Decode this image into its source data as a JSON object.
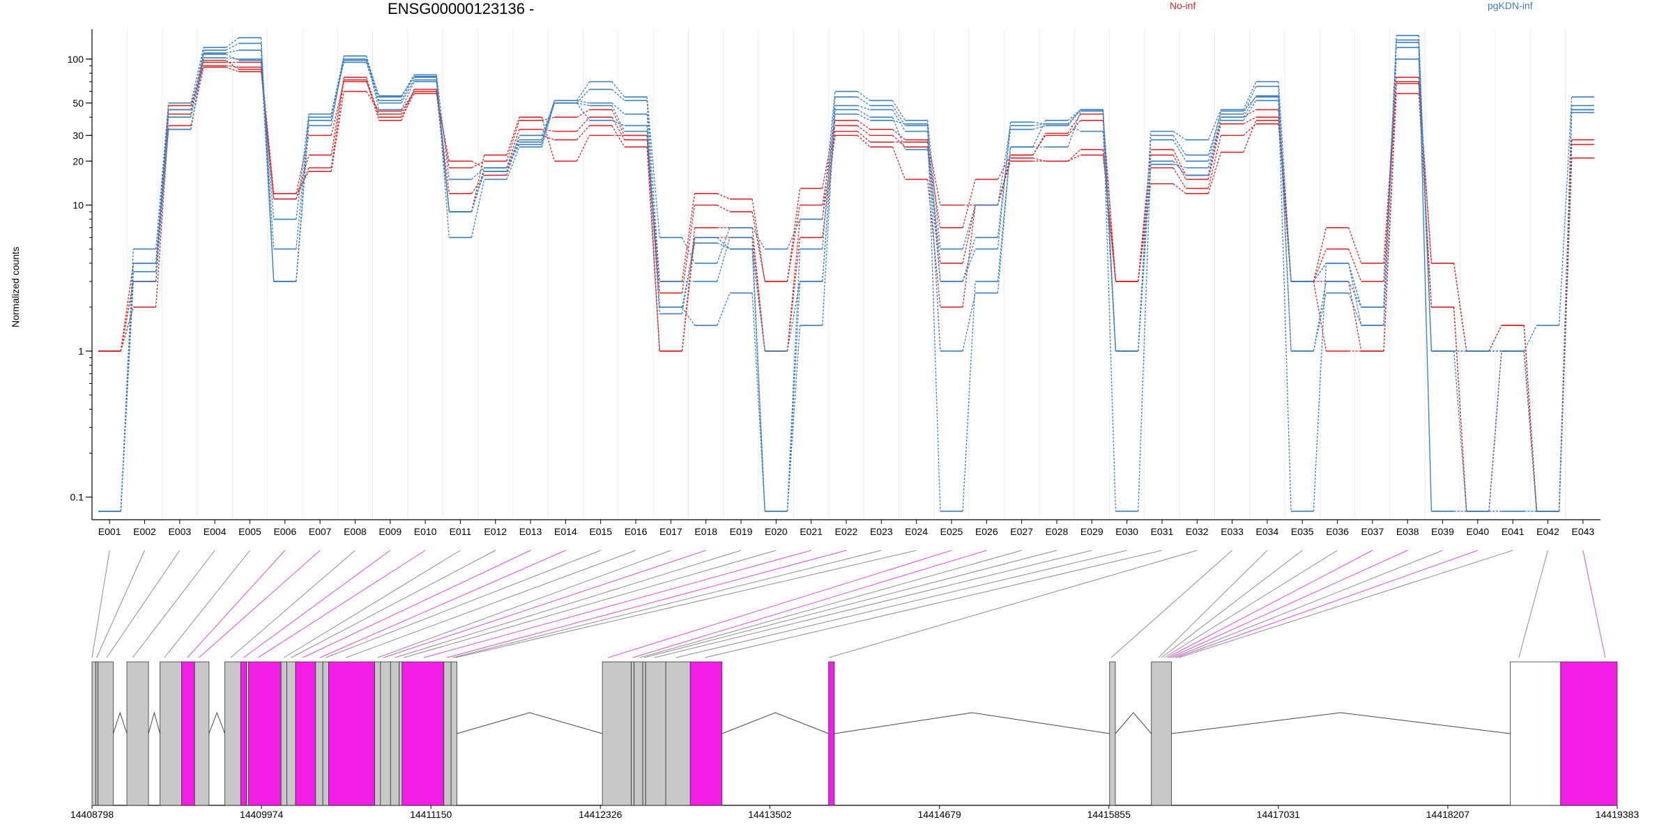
{
  "title": "ENSG00000123136 -",
  "ylabel": "Normalized counts",
  "legend": [
    {
      "name": "No-inf",
      "color": "#d62728"
    },
    {
      "name": "pgKDN-inf",
      "color": "#3a7fc1"
    }
  ],
  "colors": {
    "no_inf": "#d62728",
    "pgkdn_inf": "#3a7fc1",
    "exon": "#c8c8c8",
    "highlight": "#f21ee6",
    "connector_gray": "#8c8c8c",
    "connector_pink": "#e04fe0"
  },
  "chart_data": {
    "type": "line",
    "scale": "log",
    "ylim": [
      0.07,
      160
    ],
    "yticks": [
      0.1,
      1,
      10,
      20,
      30,
      50,
      100
    ],
    "ytick_labels": [
      "0.1",
      "1",
      "10",
      "20",
      "30",
      "50",
      "100"
    ],
    "categories": [
      "E001",
      "E002",
      "E003",
      "E004",
      "E005",
      "E006",
      "E007",
      "E008",
      "E009",
      "E010",
      "E011",
      "E012",
      "E013",
      "E014",
      "E015",
      "E016",
      "E017",
      "E018",
      "E019",
      "E020",
      "E021",
      "E022",
      "E023",
      "E024",
      "E025",
      "E026",
      "E027",
      "E028",
      "E029",
      "E030",
      "E031",
      "E032",
      "E033",
      "E034",
      "E035",
      "E036",
      "E037",
      "E038",
      "E039",
      "E040",
      "E041",
      "E042",
      "E043"
    ],
    "series": [
      {
        "group": "No-inf",
        "values": [
          1,
          3,
          42,
          95,
          95,
          12,
          30,
          70,
          42,
          60,
          18,
          20,
          38,
          40,
          45,
          30,
          3,
          12,
          11,
          3,
          13,
          38,
          33,
          28,
          10,
          10,
          22,
          31,
          42,
          3,
          24,
          16,
          40,
          45,
          3,
          7,
          4,
          75,
          4,
          1,
          1.5,
          0.08,
          28
        ]
      },
      {
        "group": "No-inf",
        "values": [
          1,
          2,
          35,
          88,
          82,
          11,
          22,
          75,
          40,
          58,
          20,
          18,
          33,
          32,
          40,
          28,
          2.5,
          10,
          9,
          3,
          10,
          35,
          30,
          25,
          7,
          15,
          22,
          30,
          38,
          3,
          22,
          15,
          36,
          40,
          3,
          5,
          3,
          70,
          4,
          1,
          1.5,
          0.08,
          26
        ]
      },
      {
        "group": "No-inf",
        "values": [
          1,
          4,
          45,
          90,
          88,
          11,
          18,
          72,
          38,
          62,
          12,
          16,
          30,
          28,
          35,
          25,
          1,
          7,
          7,
          1,
          8,
          32,
          27,
          27,
          4,
          10,
          20,
          20,
          24,
          3,
          18,
          13,
          30,
          36,
          3,
          3,
          1,
          68,
          2,
          0.08,
          1,
          0.08,
          28
        ]
      },
      {
        "group": "No-inf",
        "values": [
          1,
          3,
          48,
          98,
          85,
          12,
          17,
          60,
          44,
          60,
          9,
          22,
          40,
          20,
          30,
          30,
          1,
          6,
          6,
          1,
          6,
          30,
          25,
          15,
          2,
          10,
          21,
          20,
          22,
          3,
          14,
          12,
          23,
          38,
          3,
          1,
          1,
          58,
          2,
          0.08,
          1,
          0.08,
          21
        ]
      },
      {
        "group": "pgKDN-inf",
        "values": [
          0.08,
          5,
          50,
          120,
          140,
          3,
          42,
          105,
          55,
          78,
          15,
          18,
          28,
          52,
          70,
          55,
          6,
          4,
          7,
          5,
          8,
          60,
          52,
          38,
          5,
          10,
          35,
          36,
          45,
          1,
          32,
          28,
          45,
          70,
          3,
          4,
          1.5,
          145,
          1,
          1,
          1,
          1.5,
          55
        ]
      },
      {
        "group": "pgKDN-inf",
        "values": [
          0.08,
          4,
          40,
          115,
          128,
          3,
          38,
          98,
          56,
          75,
          6,
          15,
          25,
          50,
          62,
          52,
          3,
          3,
          6,
          0.08,
          5,
          55,
          48,
          35,
          3,
          5,
          37,
          36,
          32,
          1,
          30,
          22,
          42,
          65,
          1,
          3,
          2,
          135,
          1,
          1,
          1,
          0.08,
          48
        ]
      },
      {
        "group": "pgKDN-inf",
        "values": [
          0.08,
          4,
          33,
          110,
          115,
          5,
          40,
          100,
          52,
          76,
          9,
          17,
          27,
          52,
          50,
          42,
          2,
          1.5,
          2.5,
          0.08,
          1.5,
          48,
          45,
          32,
          1,
          2.5,
          25,
          38,
          45,
          1,
          28,
          20,
          44,
          55,
          0.08,
          4,
          2,
          120,
          0.08,
          0.08,
          0.08,
          0.08,
          45
        ]
      },
      {
        "group": "pgKDN-inf",
        "values": [
          0.08,
          3,
          33,
          102,
          100,
          8,
          42,
          95,
          50,
          72,
          9,
          18,
          26,
          50,
          38,
          35,
          1.8,
          6,
          5,
          1,
          3,
          42,
          38,
          36,
          0.08,
          3,
          25,
          25,
          44,
          1,
          19,
          18,
          40,
          56,
          1,
          2.5,
          1.5,
          100,
          1,
          0.08,
          0.08,
          0.08,
          45
        ]
      },
      {
        "group": "pgKDN-inf",
        "values": [
          0.08,
          3.5,
          45,
          108,
          98,
          3,
          35,
          105,
          45,
          70,
          9,
          17,
          30,
          50,
          48,
          32,
          2,
          5.5,
          5,
          0.08,
          3,
          45,
          40,
          24,
          3,
          6,
          33,
          35,
          45,
          0.08,
          20,
          16,
          38,
          52,
          3,
          4,
          2,
          130,
          0.08,
          0.08,
          1,
          0.08,
          43
        ]
      }
    ]
  },
  "gene_model": {
    "coordinates": [
      "14408798",
      "14409974",
      "14411150",
      "14412326",
      "14413502",
      "14414679",
      "14415855",
      "14417031",
      "14418207",
      "14419383"
    ],
    "coord_min": 14408798,
    "coord_max": 14419383
  }
}
